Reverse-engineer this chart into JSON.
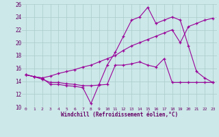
{
  "xlabel": "Windchill (Refroidissement éolien,°C)",
  "background_color": "#cce8e8",
  "line_color": "#990099",
  "grid_color": "#aacaca",
  "xlim": [
    -0.5,
    23.5
  ],
  "ylim": [
    10,
    26
  ],
  "xticks": [
    0,
    1,
    2,
    3,
    4,
    5,
    6,
    7,
    8,
    9,
    10,
    11,
    12,
    13,
    14,
    15,
    16,
    17,
    18,
    19,
    20,
    21,
    22,
    23
  ],
  "yticks": [
    10,
    12,
    14,
    16,
    18,
    20,
    22,
    24,
    26
  ],
  "series1": [
    15.0,
    14.7,
    14.5,
    13.5,
    13.5,
    13.3,
    13.2,
    13.0,
    10.5,
    13.5,
    16.5,
    18.5,
    21.0,
    23.5,
    24.0,
    25.5,
    23.0,
    23.5,
    24.0,
    23.5,
    19.5,
    15.5,
    14.5,
    13.8
  ],
  "series2": [
    15.0,
    14.7,
    14.3,
    13.8,
    13.8,
    13.6,
    13.5,
    13.3,
    13.3,
    13.4,
    13.5,
    16.5,
    16.5,
    16.7,
    17.0,
    16.5,
    16.2,
    17.5,
    13.8,
    13.8,
    13.8,
    13.8,
    13.8,
    13.8
  ],
  "series3": [
    15.0,
    14.7,
    14.5,
    14.8,
    15.2,
    15.5,
    15.8,
    16.2,
    16.5,
    17.0,
    17.5,
    18.0,
    18.8,
    19.5,
    20.0,
    20.5,
    21.0,
    21.5,
    22.0,
    20.0,
    22.5,
    23.0,
    23.5,
    23.8
  ]
}
